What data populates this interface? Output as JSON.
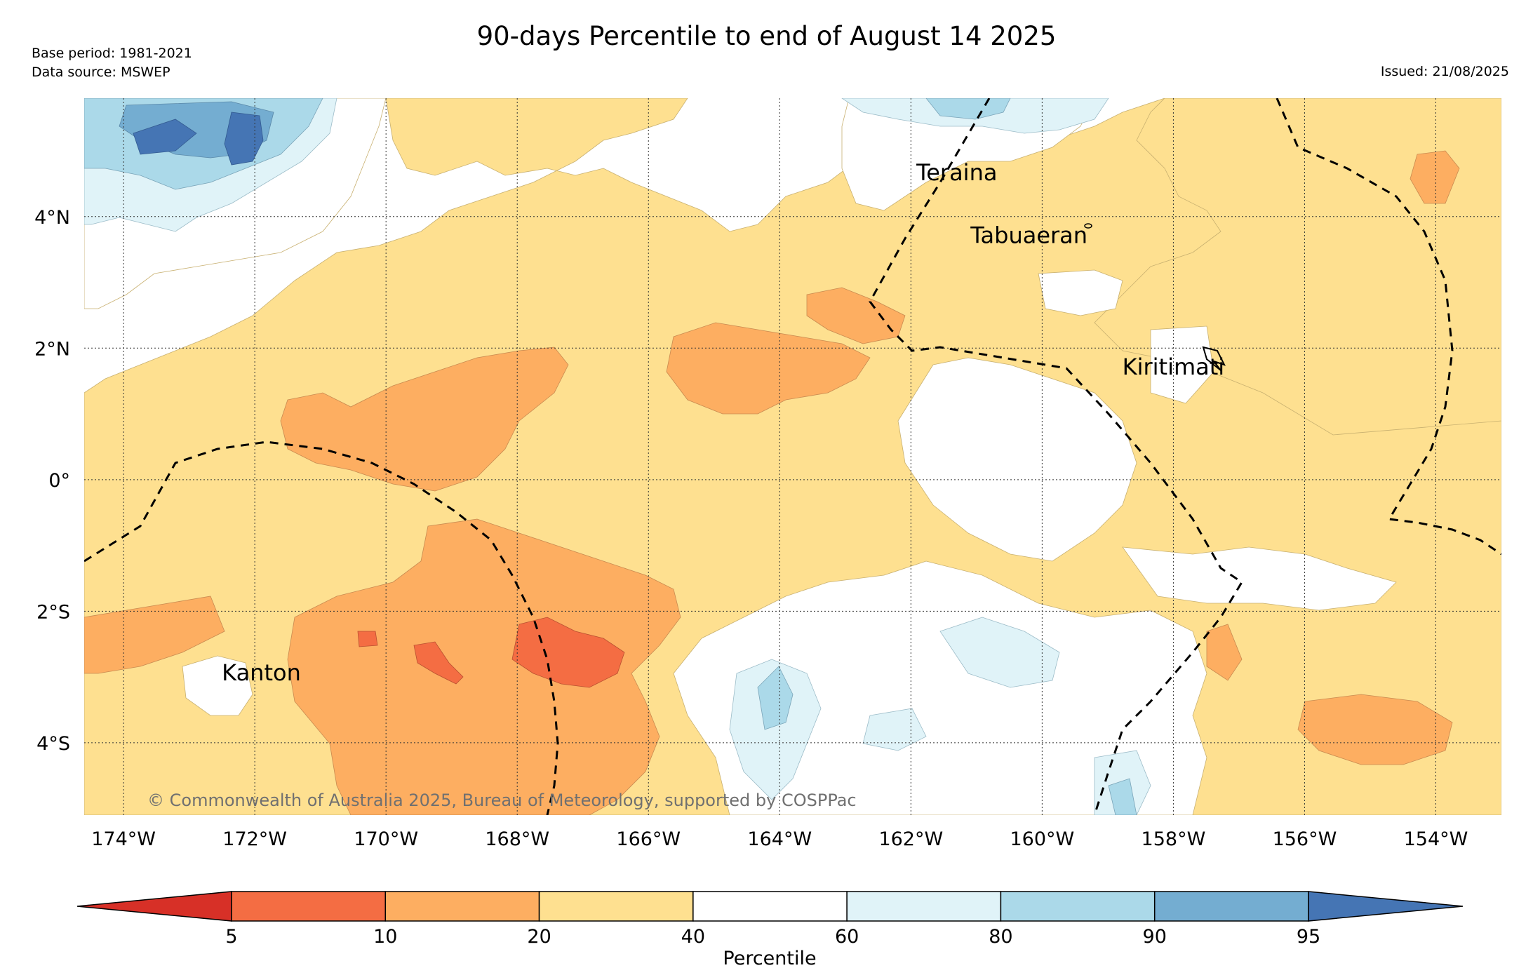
{
  "title": "90-days Percentile to end of August 14 2025",
  "meta": {
    "base_period": "Base period: 1981-2021",
    "data_source": "Data source: MSWEP",
    "issued": "Issued: 21/08/2025"
  },
  "map": {
    "extent": {
      "lon_min": -174.6,
      "lon_max": -153.0,
      "lat_min": -5.1,
      "lat_max": 5.8
    },
    "lon_ticks": [
      {
        "lon": -174,
        "label": "174°W"
      },
      {
        "lon": -172,
        "label": "172°W"
      },
      {
        "lon": -170,
        "label": "170°W"
      },
      {
        "lon": -168,
        "label": "168°W"
      },
      {
        "lon": -166,
        "label": "166°W"
      },
      {
        "lon": -164,
        "label": "164°W"
      },
      {
        "lon": -162,
        "label": "162°W"
      },
      {
        "lon": -160,
        "label": "160°W"
      },
      {
        "lon": -158,
        "label": "158°W"
      },
      {
        "lon": -156,
        "label": "156°W"
      },
      {
        "lon": -154,
        "label": "154°W"
      }
    ],
    "lat_ticks": [
      {
        "lat": 4,
        "label": "4°N"
      },
      {
        "lat": 2,
        "label": "2°N"
      },
      {
        "lat": 0,
        "label": "0°"
      },
      {
        "lat": -2,
        "label": "2°S"
      },
      {
        "lat": -4,
        "label": "4°S"
      }
    ],
    "islands": [
      {
        "name": "Teraina",
        "lon": -161.3,
        "lat": 4.55
      },
      {
        "name": "Tabuaeran",
        "lon": -160.2,
        "lat": 3.6
      },
      {
        "name": "Kiritimati",
        "lon": -158.0,
        "lat": 1.6
      },
      {
        "name": "Kanton",
        "lon": -171.9,
        "lat": -3.05
      }
    ],
    "copyright": "© Commonwealth of Australia 2025, Bureau of Meteorology, supported by COSPPac"
  },
  "colorbar": {
    "label": "Percentile",
    "ticks": [
      "5",
      "10",
      "20",
      "40",
      "60",
      "80",
      "90",
      "95"
    ],
    "colors": [
      "#d73027",
      "#f46d43",
      "#fdae61",
      "#fee090",
      "#ffffff",
      "#e0f3f8",
      "#abd9e9",
      "#74add1",
      "#4575b4"
    ]
  },
  "fill_colors": {
    "p10_20": "#fdae61",
    "p20_40": "#fee090",
    "p60_80": "#e0f3f8",
    "p80_90": "#abd9e9",
    "p90_95": "#74add1",
    "p95plus": "#4575b4",
    "p5_10": "#f46d43"
  }
}
